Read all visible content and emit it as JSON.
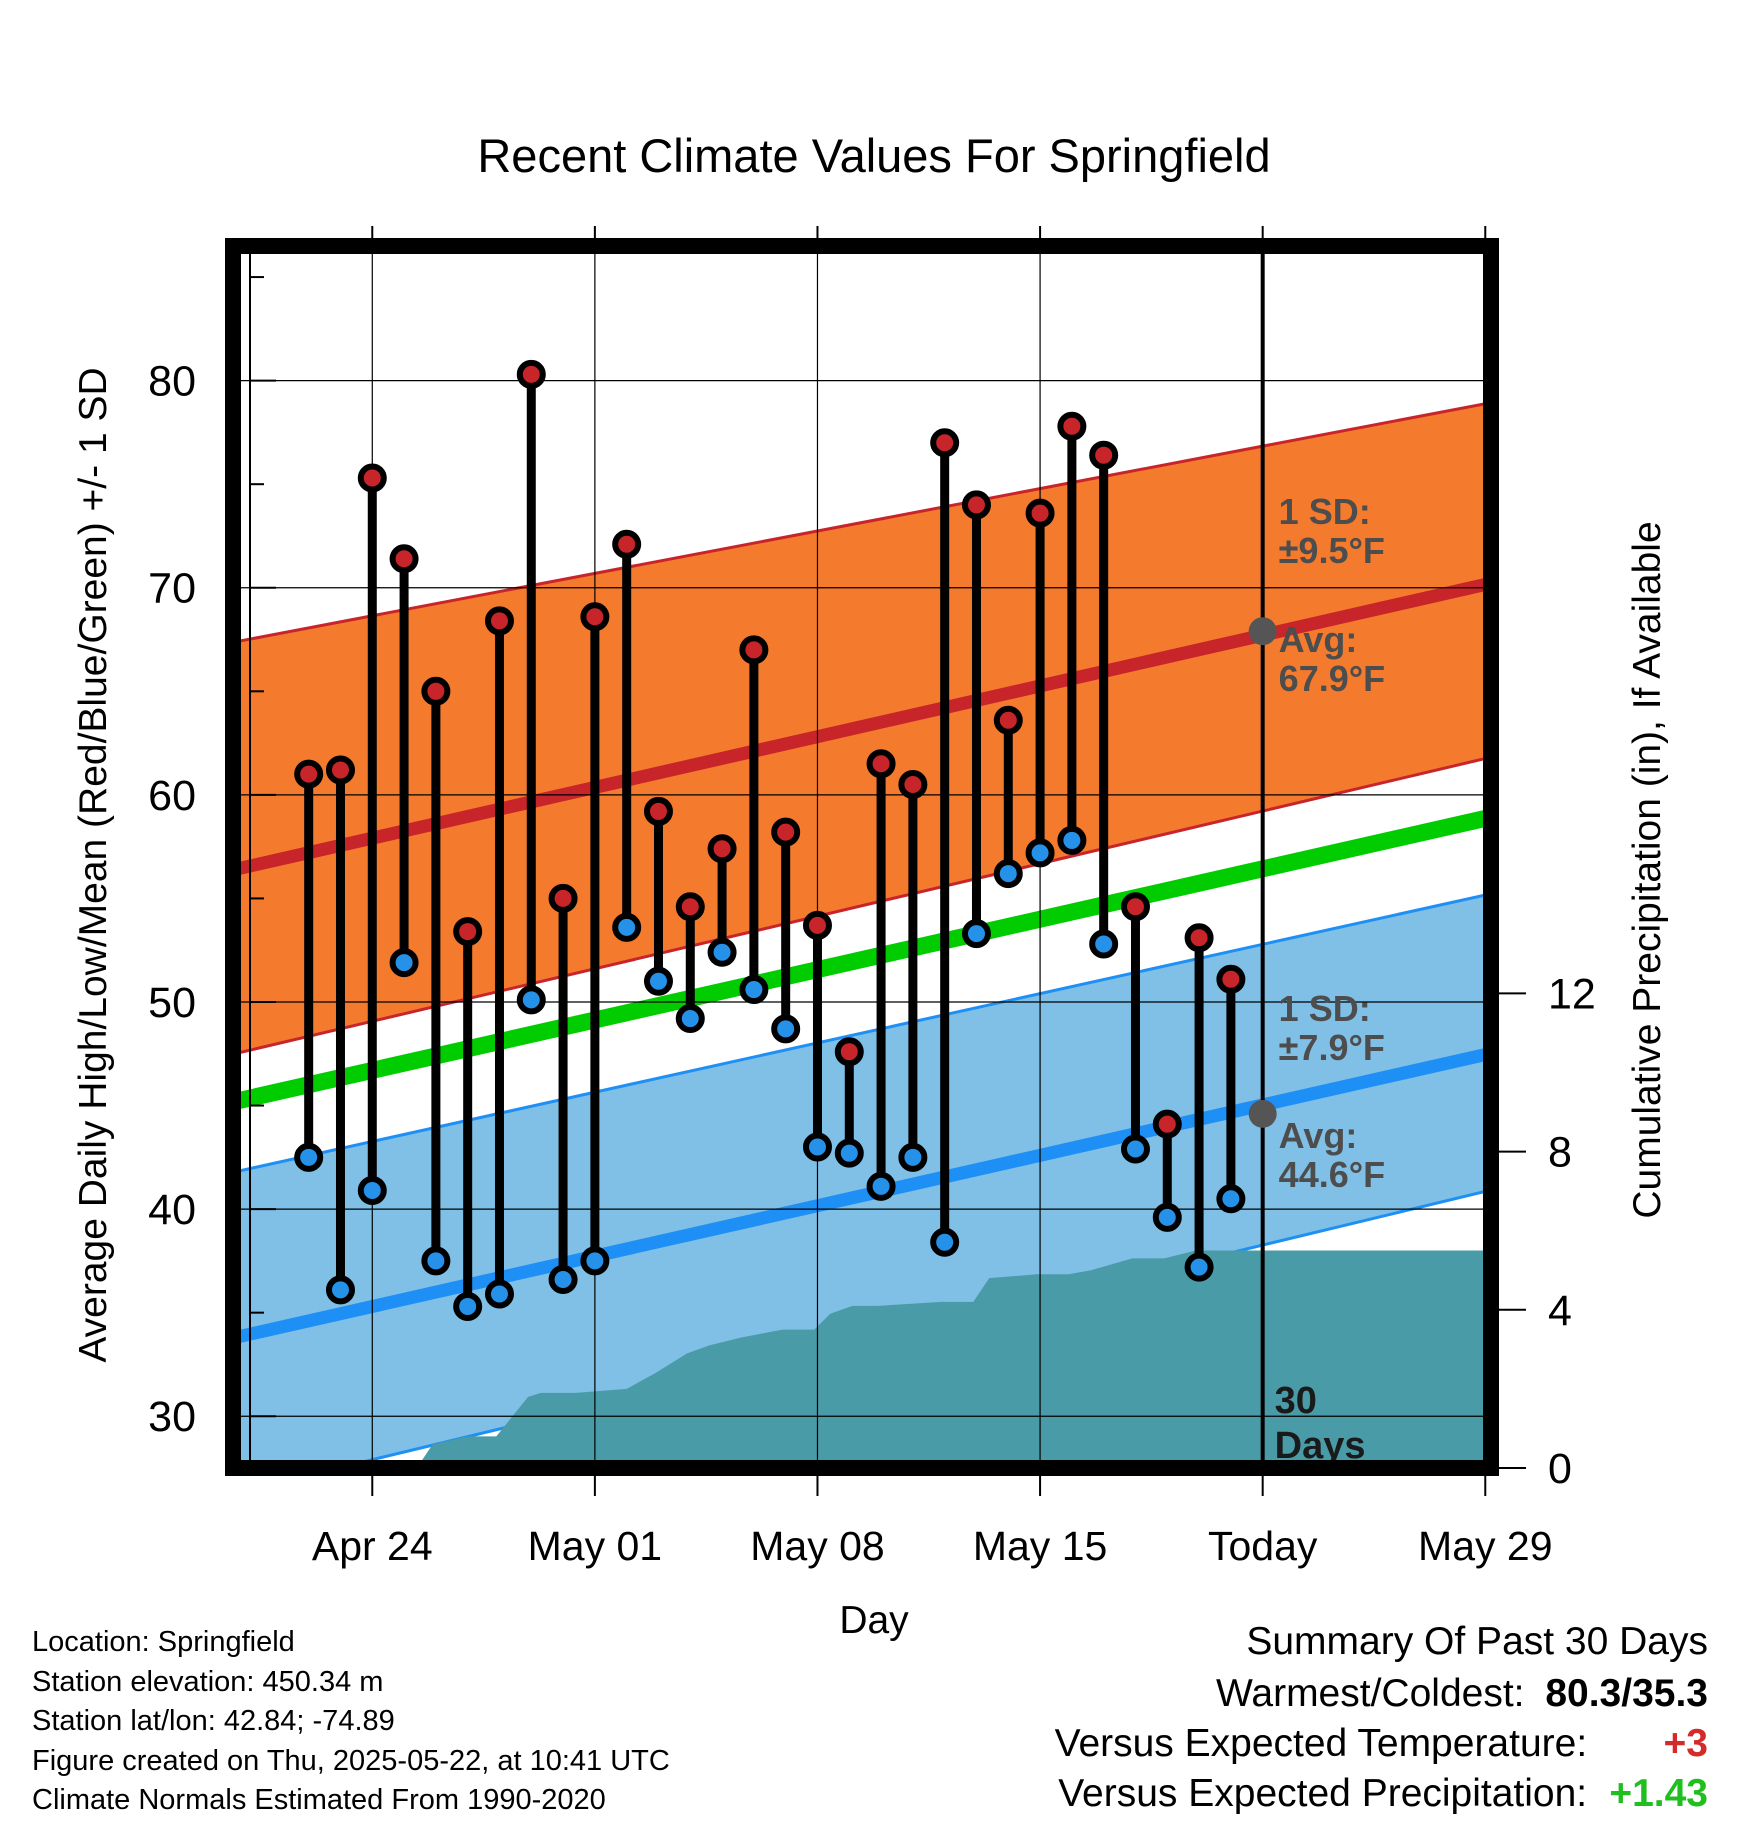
{
  "chart_data": {
    "type": "line",
    "title": "Recent Climate Values For Springfield",
    "xlabel": "Day",
    "ylabel": "Average Daily High/Low/Mean (Red/Blue/Green) +/- 1 SD",
    "y2label": "Cumulative Precipitation (in), If Available",
    "ylim": [
      27.5,
      86.5
    ],
    "y2lim": [
      0,
      30.9
    ],
    "xlim": [
      -4.6,
      35.4
    ],
    "x_ticks": [
      {
        "day": 0,
        "label": "Apr 24"
      },
      {
        "day": 7,
        "label": "May 01"
      },
      {
        "day": 14,
        "label": "May 08"
      },
      {
        "day": 21,
        "label": "May 15"
      },
      {
        "day": 28,
        "label": "Today"
      },
      {
        "day": 35,
        "label": "May 29"
      }
    ],
    "y_ticks": [
      30,
      40,
      50,
      60,
      70,
      80
    ],
    "y2_ticks": [
      0,
      4,
      8,
      12
    ],
    "today_day": 28,
    "today_label": [
      "30",
      "Days"
    ],
    "normals": {
      "day": [
        -4.6,
        35.4
      ],
      "high_avg": [
        56.3,
        70.3
      ],
      "high_upper": [
        67.3,
        79.0
      ],
      "high_lower": [
        47.4,
        61.9
      ],
      "mean_avg": [
        45.1,
        59.0
      ],
      "low_avg": [
        33.7,
        47.6
      ],
      "low_upper": [
        41.7,
        55.3
      ],
      "low_lower": [
        26.2,
        41.0
      ]
    },
    "annotations": {
      "high": {
        "sd_label": "1 SD:",
        "sd_value": "±9.5°F",
        "avg_label": "Avg:",
        "avg_value": "67.9°F",
        "today_avg": 67.9
      },
      "low": {
        "sd_label": "1 SD:",
        "sd_value": "±7.9°F",
        "avg_label": "Avg:",
        "avg_value": "44.6°F",
        "today_avg": 44.6
      }
    },
    "series": [
      {
        "name": "High",
        "color": "#c8252b",
        "x": [
          -2,
          -1,
          0,
          1,
          2,
          3,
          4,
          5,
          6,
          7,
          8,
          9,
          10,
          11,
          12,
          13,
          14,
          15,
          16,
          17,
          18,
          19,
          20,
          21,
          22,
          23,
          24,
          25,
          26,
          27
        ],
        "values": [
          61.0,
          61.2,
          75.3,
          71.4,
          65.0,
          53.4,
          68.4,
          80.3,
          55.0,
          68.6,
          72.1,
          59.2,
          54.6,
          57.4,
          67.0,
          58.2,
          53.7,
          47.6,
          61.5,
          60.5,
          77.0,
          74.0,
          63.6,
          73.6,
          77.8,
          76.4,
          54.6,
          44.1,
          53.1,
          51.1
        ]
      },
      {
        "name": "Low",
        "color": "#2591e8",
        "x": [
          -2,
          -1,
          0,
          1,
          2,
          3,
          4,
          5,
          6,
          7,
          8,
          9,
          10,
          11,
          12,
          13,
          14,
          15,
          16,
          17,
          18,
          19,
          20,
          21,
          22,
          23,
          24,
          25,
          26,
          27
        ],
        "values": [
          42.5,
          36.1,
          40.9,
          51.9,
          37.5,
          35.3,
          35.9,
          50.1,
          36.6,
          37.5,
          53.6,
          51.0,
          49.2,
          52.4,
          50.6,
          48.7,
          43.0,
          42.7,
          41.1,
          42.5,
          38.4,
          53.3,
          56.2,
          57.2,
          57.8,
          52.8,
          42.9,
          39.6,
          37.2,
          40.5
        ]
      }
    ],
    "precipitation": {
      "x": [
        -4.6,
        1.4,
        1.9,
        3.0,
        3.9,
        4.9,
        5.3,
        6.4,
        8.0,
        8.9,
        9.9,
        10.6,
        11.6,
        12.9,
        13.9,
        14.4,
        15.1,
        15.9,
        17.9,
        18.9,
        19.4,
        20.9,
        21.9,
        22.6,
        23.9,
        24.9,
        25.9,
        26.6,
        27.9,
        35.4
      ],
      "values": [
        0,
        0,
        0.6,
        0.8,
        0.8,
        1.8,
        1.9,
        1.9,
        2.0,
        2.4,
        2.9,
        3.1,
        3.3,
        3.5,
        3.5,
        3.9,
        4.1,
        4.1,
        4.2,
        4.2,
        4.8,
        4.9,
        4.9,
        5.0,
        5.3,
        5.3,
        5.5,
        5.5,
        5.5,
        5.5
      ]
    },
    "grid": true
  },
  "footer": {
    "location": "Location: Springfield",
    "elevation": "Station elevation: 450.34 m",
    "latlon": "Station lat/lon: 42.84; -74.89",
    "created": "Figure created on Thu, 2025-05-22, at 10:41 UTC",
    "normals": "Climate Normals Estimated From 1990-2020"
  },
  "summary": {
    "title": "Summary Of Past 30 Days",
    "warmest_coldest_label": "Warmest/Coldest:",
    "warmest_coldest_value": "80.3/35.3",
    "temp_label": "Versus Expected Temperature:",
    "temp_value": "+3",
    "temp_color": "#d42a2a",
    "precip_label": "Versus Expected Precipitation:",
    "precip_value": "+1.43",
    "precip_color": "#1fbf1f"
  },
  "colors": {
    "high_band": "#f47a2e",
    "high_line": "#c8252b",
    "mean_line": "#00cc00",
    "low_band": "#80c0e6",
    "low_line": "#1e90f5",
    "precip_fill": "#4a9ba8",
    "today_marker": "#555555",
    "annotation_text": "#4d4d4d"
  }
}
